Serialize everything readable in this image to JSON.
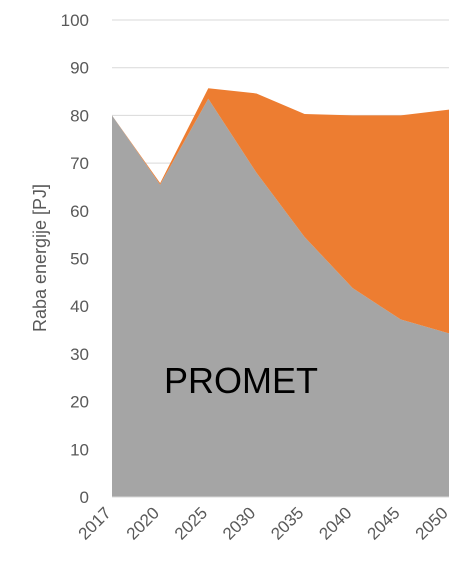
{
  "chart_data": {
    "type": "area",
    "stacked": true,
    "categories": [
      "2017",
      "2020",
      "2025",
      "2030",
      "2035",
      "2040",
      "2045",
      "2050"
    ],
    "series": [
      {
        "color": "#a5a5a5",
        "values": [
          80,
          65.5,
          83.5,
          68,
          54.5,
          43.8,
          37.2,
          34.3
        ]
      },
      {
        "color": "#ed7d31",
        "values": [
          0,
          0.3,
          2.2,
          16.6,
          25.8,
          36.2,
          42.8,
          46.9
        ]
      }
    ],
    "ylabel": "Raba energije [PJ]",
    "xlabel": "",
    "ylim": [
      0,
      100
    ],
    "yticks": [
      0,
      10,
      20,
      30,
      40,
      50,
      60,
      70,
      80,
      90,
      100
    ],
    "annotation": "PROMET",
    "grid": true,
    "legend": "none"
  }
}
